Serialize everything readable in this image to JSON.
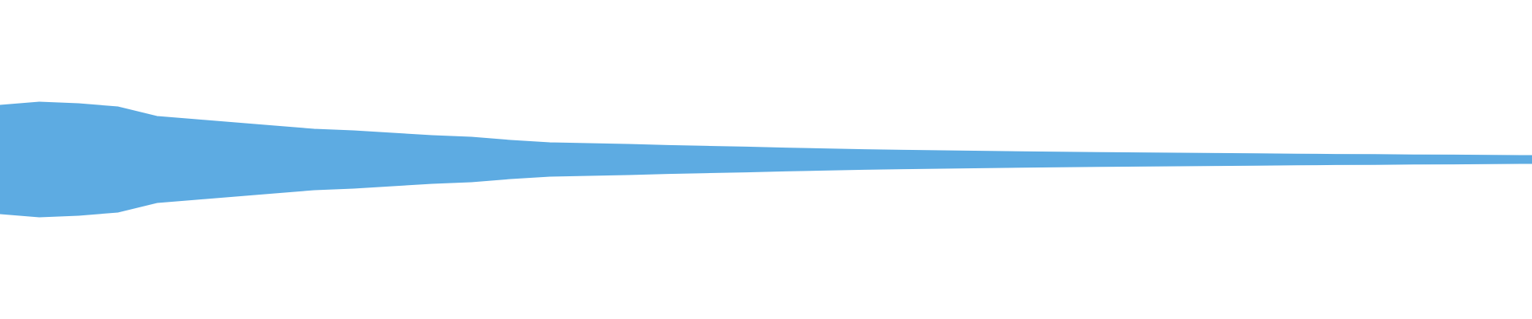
{
  "waveform": {
    "color": "#5dabe2",
    "peaks": [
      0.34,
      0.36,
      0.35,
      0.33,
      0.27,
      0.25,
      0.23,
      0.21,
      0.19,
      0.18,
      0.165,
      0.15,
      0.14,
      0.12,
      0.105,
      0.1,
      0.095,
      0.088,
      0.083,
      0.078,
      0.072,
      0.067,
      0.062,
      0.058,
      0.055,
      0.052,
      0.049,
      0.046,
      0.044,
      0.042,
      0.04,
      0.038,
      0.036,
      0.034,
      0.032,
      0.031,
      0.029,
      0.028,
      0.026,
      0.025
    ]
  }
}
